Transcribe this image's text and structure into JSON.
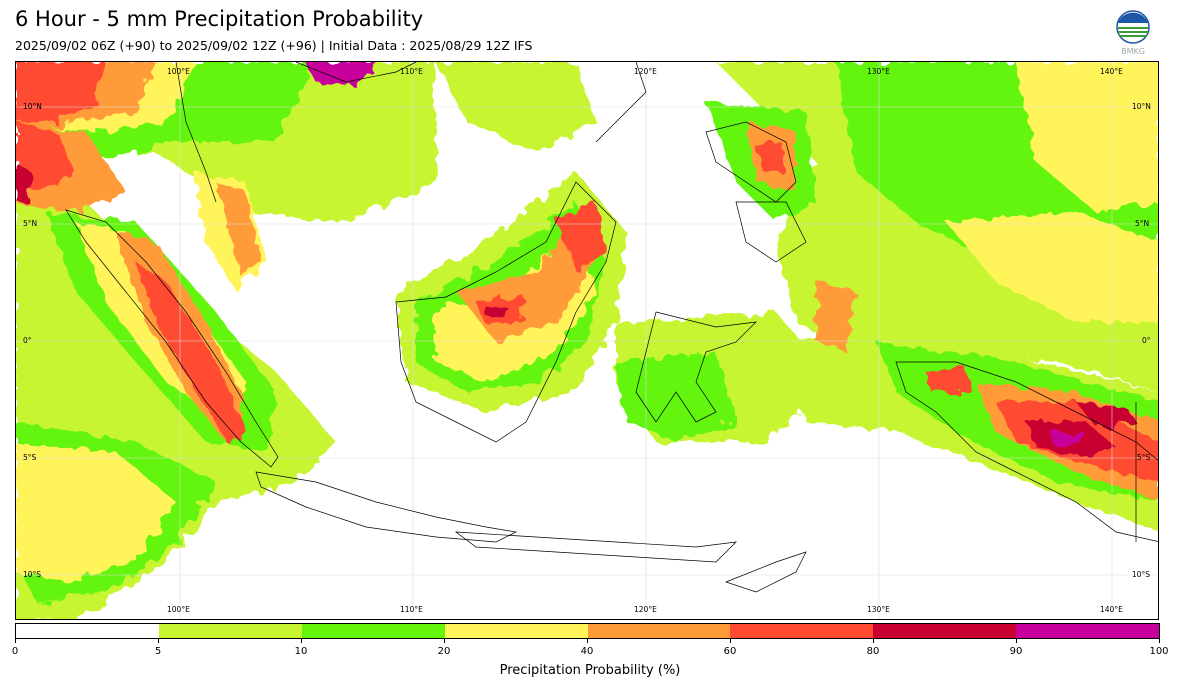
{
  "title": "6 Hour - 5 mm Precipitation Probability",
  "subtitle": "2025/09/02 06Z (+90) to 2025/09/02 12Z (+96) | Initial Data : 2025/08/29 12Z IFS",
  "logo": {
    "icon": "bmkg-logo-icon",
    "text": "BMKG"
  },
  "map": {
    "lon_labels_top": [
      "100°E",
      "110°E",
      "120°E",
      "130°E",
      "140°E"
    ],
    "lon_labels_bottom": [
      "100°E",
      "110°E",
      "120°E",
      "130°E",
      "140°E"
    ],
    "lat_labels_left": [
      "10°N",
      "5°N",
      "0°",
      "5°S",
      "10°S"
    ],
    "lat_labels_right": [
      "10°N",
      "5°N",
      "0°",
      "5°S",
      "10°S"
    ]
  },
  "colorbar": {
    "title": "Precipitation Probability (%)",
    "ticks": [
      "0",
      "5",
      "10",
      "20",
      "40",
      "60",
      "80",
      "90",
      "100"
    ],
    "colors": [
      "#ffffff",
      "#c8f530",
      "#64f50a",
      "#fff55a",
      "#ff9b37",
      "#ff4b32",
      "#c80032",
      "#c8009b"
    ]
  }
}
